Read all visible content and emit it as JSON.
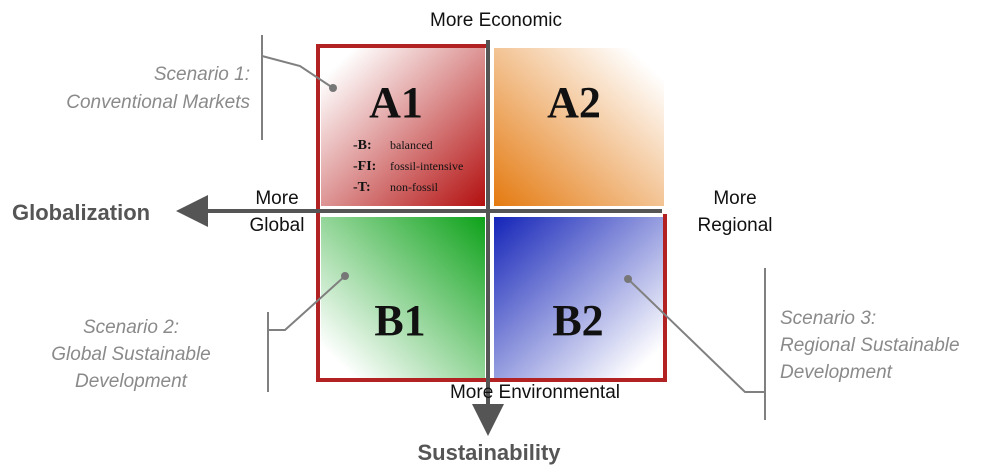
{
  "axes": {
    "top": "More Economic",
    "bottom": "More Environmental",
    "left": [
      "More",
      "Global"
    ],
    "right": [
      "More",
      "Regional"
    ],
    "horizontal_title": "Globalization",
    "vertical_title": "Sustainability"
  },
  "quadrants": [
    {
      "label": "A1",
      "items": [
        {
          "code": "-B:",
          "text": "balanced"
        },
        {
          "code": "-FI:",
          "text": "fossil-intensive"
        },
        {
          "code": "-T:",
          "text": "non-fossil"
        }
      ]
    },
    {
      "label": "A2"
    },
    {
      "label": "B1"
    },
    {
      "label": "B2"
    }
  ],
  "scenarios": [
    {
      "lines": [
        "Scenario 1:",
        "Conventional Markets"
      ]
    },
    {
      "lines": [
        "Scenario 2:",
        "Global Sustainable",
        "Development"
      ]
    },
    {
      "lines": [
        "Scenario 3:",
        "Regional Sustainable",
        "Development"
      ]
    }
  ]
}
